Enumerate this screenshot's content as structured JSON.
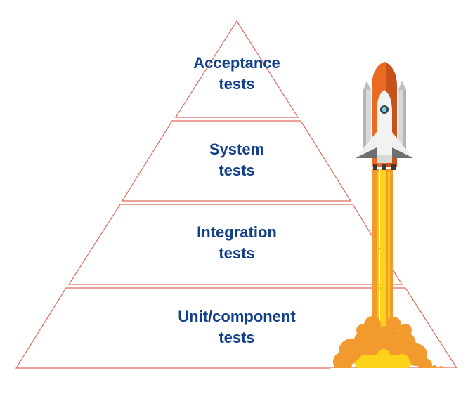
{
  "pyramid": {
    "tiers": [
      {
        "line1": "Acceptance",
        "line2": "tests"
      },
      {
        "line1": "System",
        "line2": "tests"
      },
      {
        "line1": "Integration",
        "line2": "tests"
      },
      {
        "line1": "Unit/component",
        "line2": "tests"
      }
    ]
  },
  "colors": {
    "outline": "#e06a5c",
    "label": "#12408a",
    "flame_orange": "#f39a2e",
    "flame_yellow": "#fcd21b",
    "rocket_orange": "#ea6a23"
  },
  "icons": [
    "rocket-icon"
  ]
}
